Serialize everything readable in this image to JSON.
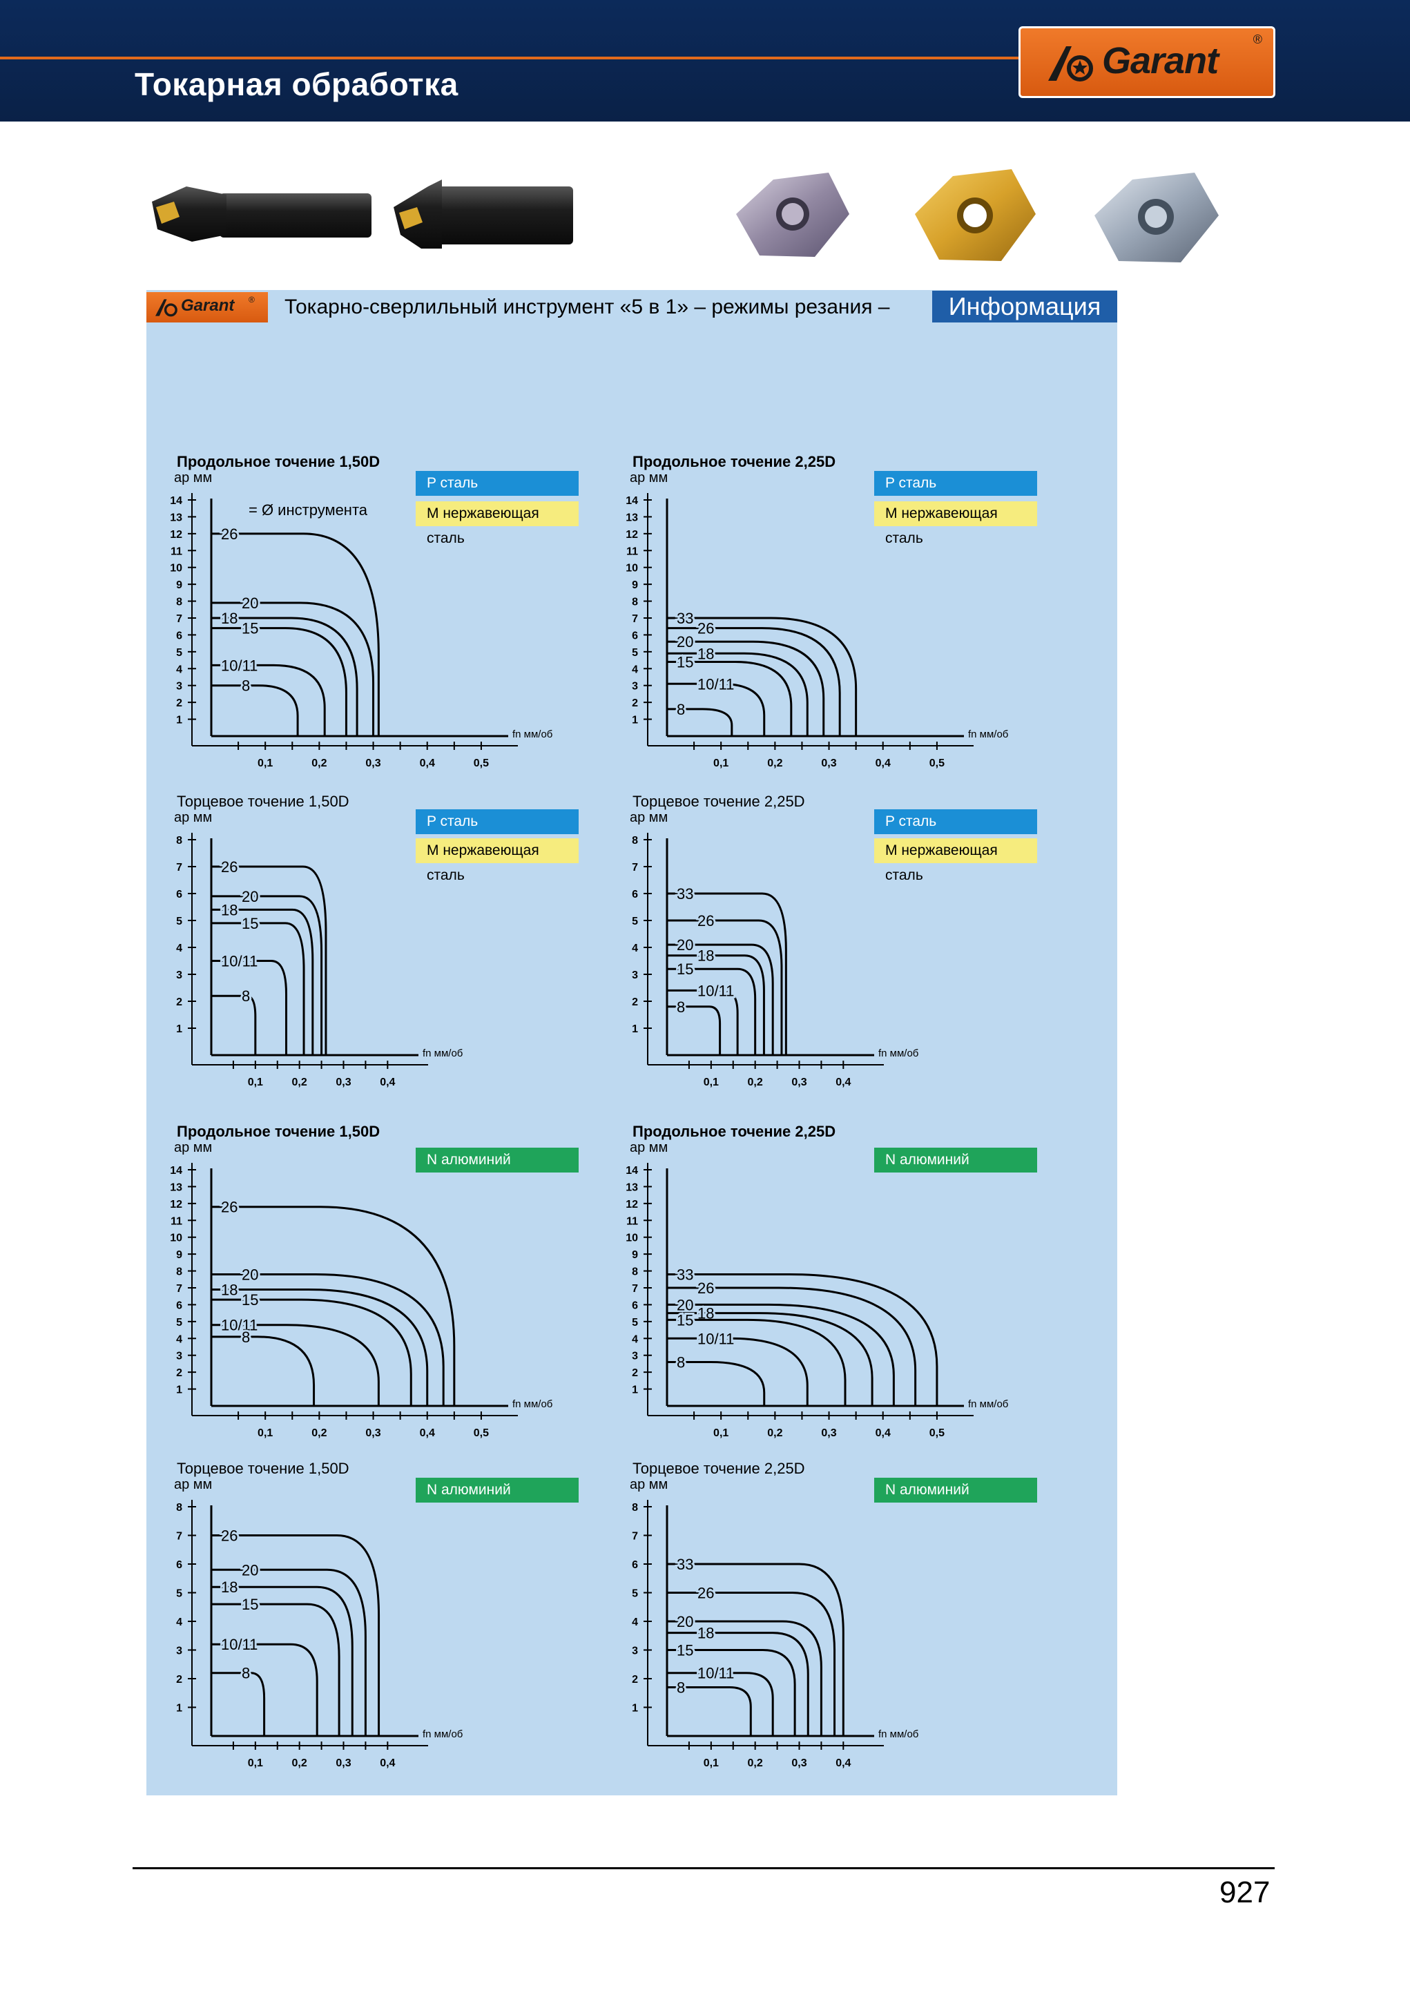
{
  "header": {
    "title": "Токарная обработка",
    "brand": "Garant",
    "brand_mark": "®"
  },
  "panel": {
    "brand": "Garant",
    "brand_mark": "®",
    "title": "Токарно-сверлильный инструмент «5 в 1» – режимы резания –",
    "badge": "Информация"
  },
  "colors": {
    "header_bg": "#0c2a5a",
    "accent_orange": "#e26a1c",
    "panel_bg": "#bed9f0",
    "steel_p": "#1b8fd6",
    "stainless_m": "#f6ec7e",
    "aluminium_n": "#1fa45a"
  },
  "legend": {
    "p": "P сталь",
    "m": "M нержавеющая сталь",
    "n": "N алюминий"
  },
  "chart_data": [
    {
      "type": "line",
      "title": "Продольное точение 1,50D",
      "bold": true,
      "ylabel": "ap мм",
      "xlabel": "fn мм/об",
      "ylim": [
        0,
        14
      ],
      "xlim": [
        0,
        0.55
      ],
      "yticks": [
        "1",
        "2",
        "3",
        "4",
        "5",
        "6",
        "7",
        "8",
        "9",
        "10",
        "11",
        "12",
        "13",
        "14"
      ],
      "xticks": [
        "0,1",
        "0,2",
        "0,3",
        "0,4",
        "0,5"
      ],
      "annotation": "= Ø инструмента",
      "series": [
        {
          "name": "26",
          "ap": 12,
          "fn": 0.31,
          "r": 0.45
        },
        {
          "name": "20",
          "ap": 7.9,
          "fn": 0.3,
          "r": 0.45
        },
        {
          "name": "18",
          "ap": 7,
          "fn": 0.27,
          "r": 0.45
        },
        {
          "name": "15",
          "ap": 6.4,
          "fn": 0.25,
          "r": 0.45
        },
        {
          "name": "10/11",
          "ap": 4.2,
          "fn": 0.21,
          "r": 0.45
        },
        {
          "name": "8",
          "ap": 3,
          "fn": 0.16,
          "r": 0.45
        }
      ]
    },
    {
      "type": "line",
      "title": "Продольное точение 2,25D",
      "bold": true,
      "ylabel": "ap мм",
      "xlabel": "fn мм/об",
      "ylim": [
        0,
        14
      ],
      "xlim": [
        0,
        0.55
      ],
      "yticks": [
        "1",
        "2",
        "3",
        "4",
        "5",
        "6",
        "7",
        "8",
        "9",
        "10",
        "11",
        "12",
        "13",
        "14"
      ],
      "xticks": [
        "0,1",
        "0,2",
        "0,3",
        "0,4",
        "0,5"
      ],
      "series": [
        {
          "name": "33",
          "ap": 7,
          "fn": 0.35,
          "r": 0.45
        },
        {
          "name": "26",
          "ap": 6.4,
          "fn": 0.32,
          "r": 0.45
        },
        {
          "name": "20",
          "ap": 5.6,
          "fn": 0.29,
          "r": 0.45
        },
        {
          "name": "18",
          "ap": 4.9,
          "fn": 0.26,
          "r": 0.45
        },
        {
          "name": "15",
          "ap": 4.4,
          "fn": 0.23,
          "r": 0.45
        },
        {
          "name": "10/11",
          "ap": 3.1,
          "fn": 0.18,
          "r": 0.45
        },
        {
          "name": "8",
          "ap": 1.6,
          "fn": 0.12,
          "r": 0.45
        }
      ]
    },
    {
      "type": "line",
      "title": "Торцевое точение 1,50D",
      "bold": false,
      "ylabel": "ap мм",
      "xlabel": "fn мм/об",
      "ylim": [
        0,
        8
      ],
      "xlim": [
        0,
        0.47
      ],
      "yticks": [
        "1",
        "2",
        "3",
        "4",
        "5",
        "6",
        "7",
        "8"
      ],
      "xticks": [
        "0,1",
        "0,2",
        "0,3",
        "0,4"
      ],
      "series": [
        {
          "name": "26",
          "ap": 7,
          "fn": 0.26,
          "r": 0.2
        },
        {
          "name": "20",
          "ap": 5.9,
          "fn": 0.25,
          "r": 0.2
        },
        {
          "name": "18",
          "ap": 5.4,
          "fn": 0.23,
          "r": 0.2
        },
        {
          "name": "15",
          "ap": 4.9,
          "fn": 0.21,
          "r": 0.2
        },
        {
          "name": "10/11",
          "ap": 3.5,
          "fn": 0.17,
          "r": 0.2
        },
        {
          "name": "8",
          "ap": 2.2,
          "fn": 0.1,
          "r": 0.2
        }
      ]
    },
    {
      "type": "line",
      "title": "Торцевое точение 2,25D",
      "bold": false,
      "ylabel": "ap мм",
      "xlabel": "fn мм/об",
      "ylim": [
        0,
        8
      ],
      "xlim": [
        0,
        0.47
      ],
      "yticks": [
        "1",
        "2",
        "3",
        "4",
        "5",
        "6",
        "7",
        "8"
      ],
      "xticks": [
        "0,1",
        "0,2",
        "0,3",
        "0,4"
      ],
      "series": [
        {
          "name": "33",
          "ap": 6,
          "fn": 0.27,
          "r": 0.2
        },
        {
          "name": "26",
          "ap": 5,
          "fn": 0.26,
          "r": 0.2
        },
        {
          "name": "20",
          "ap": 4.1,
          "fn": 0.24,
          "r": 0.2
        },
        {
          "name": "18",
          "ap": 3.7,
          "fn": 0.22,
          "r": 0.2
        },
        {
          "name": "15",
          "ap": 3.2,
          "fn": 0.2,
          "r": 0.2
        },
        {
          "name": "10/11",
          "ap": 2.4,
          "fn": 0.16,
          "r": 0.2
        },
        {
          "name": "8",
          "ap": 1.8,
          "fn": 0.12,
          "r": 0.2
        }
      ]
    },
    {
      "type": "line",
      "title": "Продольное точение 1,50D",
      "bold": true,
      "ylabel": "ap мм",
      "xlabel": "fn мм/об",
      "ylim": [
        0,
        14
      ],
      "xlim": [
        0,
        0.55
      ],
      "yticks": [
        "1",
        "2",
        "3",
        "4",
        "5",
        "6",
        "7",
        "8",
        "9",
        "10",
        "11",
        "12",
        "13",
        "14"
      ],
      "xticks": [
        "0,1",
        "0,2",
        "0,3",
        "0,4",
        "0,5"
      ],
      "series": [
        {
          "name": "26",
          "ap": 11.8,
          "fn": 0.45,
          "r": 0.55
        },
        {
          "name": "20",
          "ap": 7.8,
          "fn": 0.43,
          "r": 0.55
        },
        {
          "name": "18",
          "ap": 6.9,
          "fn": 0.4,
          "r": 0.55
        },
        {
          "name": "15",
          "ap": 6.3,
          "fn": 0.37,
          "r": 0.55
        },
        {
          "name": "10/11",
          "ap": 4.8,
          "fn": 0.31,
          "r": 0.55
        },
        {
          "name": "8",
          "ap": 4.1,
          "fn": 0.19,
          "r": 0.55
        }
      ]
    },
    {
      "type": "line",
      "title": "Продольное точение 2,25D",
      "bold": true,
      "ylabel": "ap мм",
      "xlabel": "fn мм/об",
      "ylim": [
        0,
        14
      ],
      "xlim": [
        0,
        0.55
      ],
      "yticks": [
        "1",
        "2",
        "3",
        "4",
        "5",
        "6",
        "7",
        "8",
        "9",
        "10",
        "11",
        "12",
        "13",
        "14"
      ],
      "xticks": [
        "0,1",
        "0,2",
        "0,3",
        "0,4",
        "0,5"
      ],
      "series": [
        {
          "name": "33",
          "ap": 7.8,
          "fn": 0.5,
          "r": 0.55
        },
        {
          "name": "26",
          "ap": 7,
          "fn": 0.46,
          "r": 0.55
        },
        {
          "name": "20",
          "ap": 6,
          "fn": 0.42,
          "r": 0.55
        },
        {
          "name": "18",
          "ap": 5.5,
          "fn": 0.38,
          "r": 0.55
        },
        {
          "name": "15",
          "ap": 5.1,
          "fn": 0.33,
          "r": 0.55
        },
        {
          "name": "10/11",
          "ap": 4,
          "fn": 0.26,
          "r": 0.55
        },
        {
          "name": "8",
          "ap": 2.6,
          "fn": 0.18,
          "r": 0.55
        }
      ]
    },
    {
      "type": "line",
      "title": "Торцевое точение 1,50D",
      "bold": false,
      "ylabel": "ap мм",
      "xlabel": "fn мм/об",
      "ylim": [
        0,
        8
      ],
      "xlim": [
        0,
        0.47
      ],
      "yticks": [
        "1",
        "2",
        "3",
        "4",
        "5",
        "6",
        "7",
        "8"
      ],
      "xticks": [
        "0,1",
        "0,2",
        "0,3",
        "0,4"
      ],
      "series": [
        {
          "name": "26",
          "ap": 7,
          "fn": 0.38,
          "r": 0.25
        },
        {
          "name": "20",
          "ap": 5.8,
          "fn": 0.35,
          "r": 0.25
        },
        {
          "name": "18",
          "ap": 5.2,
          "fn": 0.32,
          "r": 0.25
        },
        {
          "name": "15",
          "ap": 4.6,
          "fn": 0.29,
          "r": 0.25
        },
        {
          "name": "10/11",
          "ap": 3.2,
          "fn": 0.24,
          "r": 0.25
        },
        {
          "name": "8",
          "ap": 2.2,
          "fn": 0.12,
          "r": 0.25
        }
      ]
    },
    {
      "type": "line",
      "title": "Торцевое точение 2,25D",
      "bold": false,
      "ylabel": "ap мм",
      "xlabel": "fn мм/об",
      "ylim": [
        0,
        8
      ],
      "xlim": [
        0,
        0.47
      ],
      "yticks": [
        "1",
        "2",
        "3",
        "4",
        "5",
        "6",
        "7",
        "8"
      ],
      "xticks": [
        "0,1",
        "0,2",
        "0,3",
        "0,4"
      ],
      "series": [
        {
          "name": "33",
          "ap": 6,
          "fn": 0.4,
          "r": 0.25
        },
        {
          "name": "26",
          "ap": 5,
          "fn": 0.38,
          "r": 0.25
        },
        {
          "name": "20",
          "ap": 4,
          "fn": 0.35,
          "r": 0.25
        },
        {
          "name": "18",
          "ap": 3.6,
          "fn": 0.32,
          "r": 0.25
        },
        {
          "name": "15",
          "ap": 3,
          "fn": 0.29,
          "r": 0.25
        },
        {
          "name": "10/11",
          "ap": 2.2,
          "fn": 0.24,
          "r": 0.25
        },
        {
          "name": "8",
          "ap": 1.7,
          "fn": 0.19,
          "r": 0.25
        }
      ]
    }
  ],
  "footer": {
    "page_number": "927"
  }
}
